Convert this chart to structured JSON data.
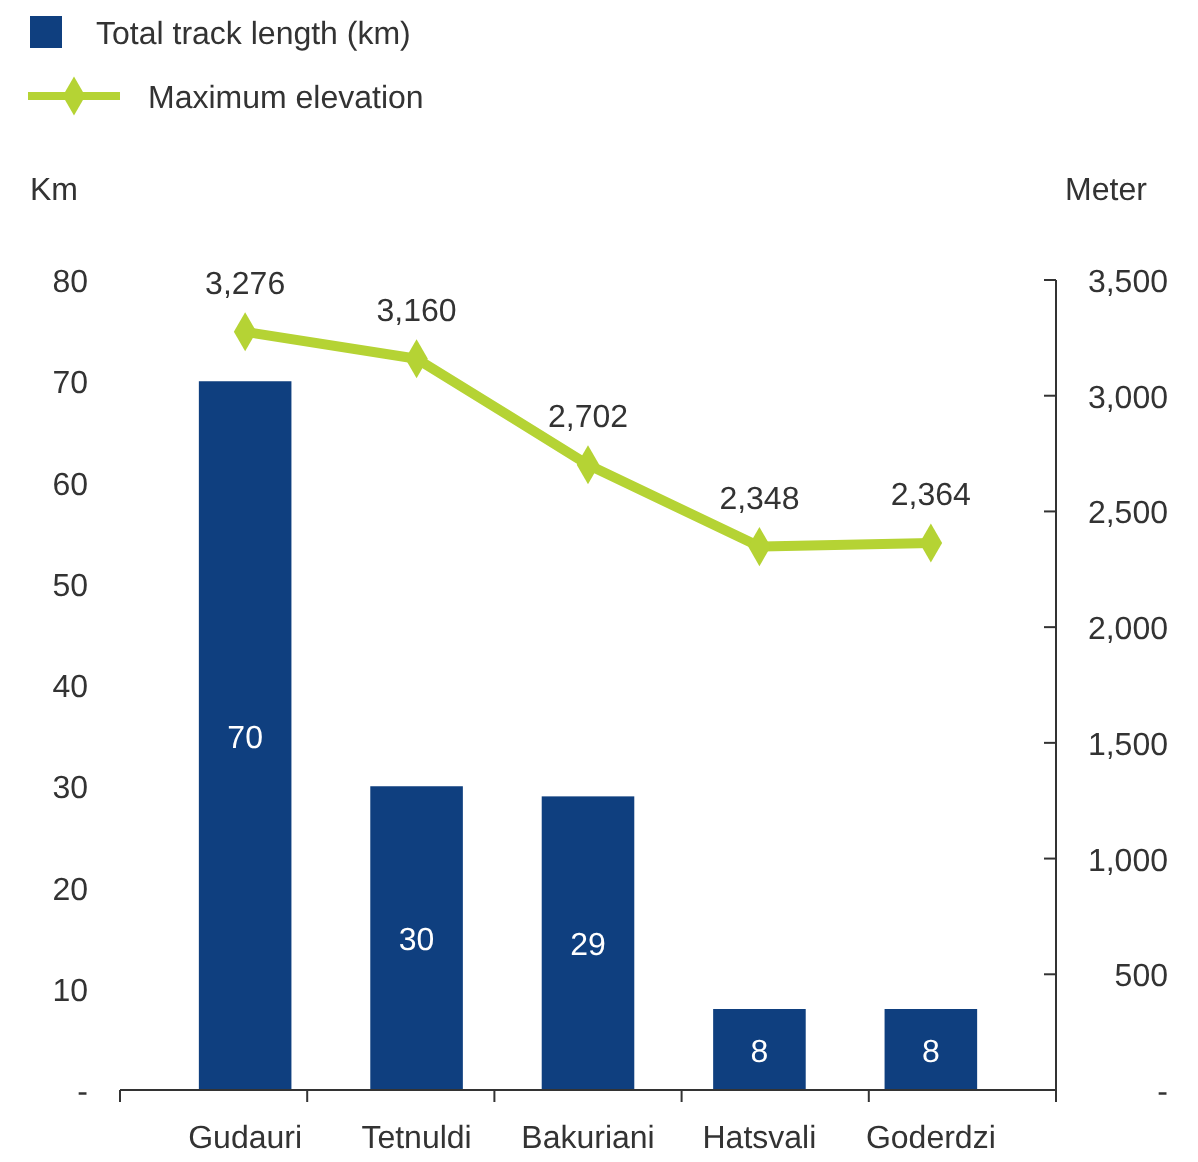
{
  "chart_data": {
    "type": "bar",
    "ylabel": "Km",
    "y2label": "Meter",
    "categories": [
      "Gudauri",
      "Tetnuldi",
      "Bakuriani",
      "Hatsvali",
      "Goderdzi"
    ],
    "series": [
      {
        "name": "Total track length (km)",
        "color": "#0f3f7f",
        "values": [
          70,
          30,
          29,
          8,
          8
        ]
      },
      {
        "name": "Maximum elevation",
        "type": "line",
        "axis": "y2",
        "color": "#b5d334",
        "marker": "diamond",
        "values": [
          3276,
          3160,
          2702,
          2348,
          2364
        ],
        "value_labels": [
          "3,276",
          "3,160",
          "2,702",
          "2,348",
          "2,364"
        ]
      }
    ],
    "ylim": [
      0,
      80
    ],
    "yticks": [
      {
        "value": 0,
        "label": "-"
      },
      10,
      20,
      30,
      40,
      50,
      60,
      70,
      80
    ],
    "y2lim": [
      0,
      3500
    ],
    "y2ticks": [
      {
        "value": 0,
        "label": "-"
      },
      {
        "value": 500,
        "label": "500"
      },
      {
        "value": 1000,
        "label": "1,000"
      },
      {
        "value": 1500,
        "label": "1,500"
      },
      {
        "value": 2000,
        "label": "2,000"
      },
      {
        "value": 2500,
        "label": "2,500"
      },
      {
        "value": 3000,
        "label": "3,000"
      },
      {
        "value": 3500,
        "label": "3,500"
      }
    ],
    "legend": "top left",
    "data_labels": true
  }
}
